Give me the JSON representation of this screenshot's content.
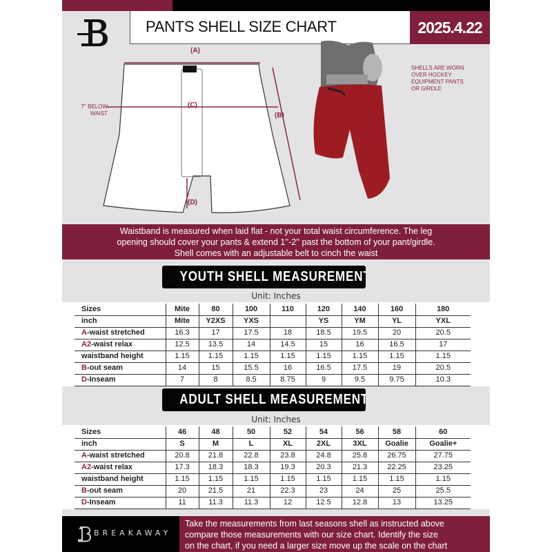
{
  "header": {
    "title": "PANTS SHELL SIZE CHART",
    "date": "2025.4.22",
    "logo": "B"
  },
  "diagram": {
    "label_a": "(A)",
    "label_b": "(B)",
    "label_c": "(C)",
    "label_d": "(D)",
    "below_waist_line1": "7'' BELOW",
    "below_waist_line2": "WAIST",
    "note": [
      "SHELLS ARE WORN",
      "OVER HOCKEY",
      "EQUIPMENT PANTS",
      "OR GIRDLE"
    ]
  },
  "banner": [
    "Waistband is measured when laid flat - not your total waist circumference. The leg",
    "opening should cover your pants & extend 1''-2'' past the bottom of your pant/girdle.",
    "Shell comes with an adjustable belt to cinch the waist"
  ],
  "youth": {
    "title": "YOUTH SHELL MEASUREMENTS",
    "unit": "Unit: Inches",
    "rows": [
      {
        "pre": "",
        "label": "Sizes",
        "cells": [
          "Mite",
          "80",
          "100",
          "110",
          "120",
          "140",
          "160",
          "180"
        ]
      },
      {
        "pre": "",
        "label": "inch",
        "cells": [
          "Mite",
          "Y2XS",
          "YXS",
          "",
          "YS",
          "YM",
          "YL",
          "YXL"
        ]
      },
      {
        "pre": "A",
        "label": "-waist stretched",
        "cells": [
          "16.3",
          "17",
          "17.5",
          "18",
          "18.5",
          "19.5",
          "20",
          "20.5"
        ]
      },
      {
        "pre": "A2",
        "label": "-waist relax",
        "cells": [
          "12.5",
          "13.5",
          "14",
          "14.5",
          "15",
          "16",
          "16.5",
          "17"
        ]
      },
      {
        "pre": "",
        "label": "waistband height",
        "cells": [
          "1.15",
          "1.15",
          "1.15",
          "1.15",
          "1.15",
          "1.15",
          "1.15",
          "1.15"
        ]
      },
      {
        "pre": "B",
        "label": "-out seam",
        "cells": [
          "14",
          "15",
          "15.5",
          "16",
          "16.5",
          "17.5",
          "19",
          "20.5"
        ]
      },
      {
        "pre": "D",
        "label": "-Inseam",
        "cells": [
          "7",
          "8",
          "8.5",
          "8.75",
          "9",
          "9.5",
          "9.75",
          "10.3"
        ]
      }
    ]
  },
  "adult": {
    "title": "ADULT SHELL MEASUREMENTS",
    "unit": "Unit: Inches",
    "rows": [
      {
        "pre": "",
        "label": "Sizes",
        "cells": [
          "46",
          "48",
          "50",
          "52",
          "54",
          "56",
          "58",
          "60"
        ]
      },
      {
        "pre": "",
        "label": "inch",
        "cells": [
          "S",
          "M",
          "L",
          "XL",
          "2XL",
          "3XL",
          "Goalie",
          "Goalie+"
        ]
      },
      {
        "pre": "A",
        "label": "-waist stretched",
        "cells": [
          "20.8",
          "21.8",
          "22.8",
          "23.8",
          "24.8",
          "25.8",
          "26.75",
          "27.75"
        ]
      },
      {
        "pre": "A2",
        "label": "-waist relax",
        "cells": [
          "17.3",
          "18.3",
          "18.3",
          "19.3",
          "20.3",
          "21.3",
          "22.25",
          "23.25"
        ]
      },
      {
        "pre": "",
        "label": "waistband height",
        "cells": [
          "1.15",
          "1.15",
          "1.15",
          "1.15",
          "1.15",
          "1.15",
          "1.15",
          "1.15"
        ]
      },
      {
        "pre": "B",
        "label": "-out seam",
        "cells": [
          "20",
          "21.5",
          "21",
          "22.3",
          "23",
          "24",
          "25",
          "25.5"
        ]
      },
      {
        "pre": "D",
        "label": "-Inseam",
        "cells": [
          "11",
          "11.3",
          "11.3",
          "12",
          "12.5",
          "12.8",
          "13",
          "13.25"
        ]
      }
    ]
  },
  "footer": {
    "brand": "BREAKAWAY",
    "text": [
      "Take the measurements from last seasons shell as instructed above",
      "compare those measurements  with our size chart. Identify the size",
      "on the chart, if you need a larger size move up the scale on the chart"
    ]
  },
  "colors": {
    "maroon": "#7f1f3b",
    "background": "#e3e3e6",
    "black": "#000000"
  }
}
